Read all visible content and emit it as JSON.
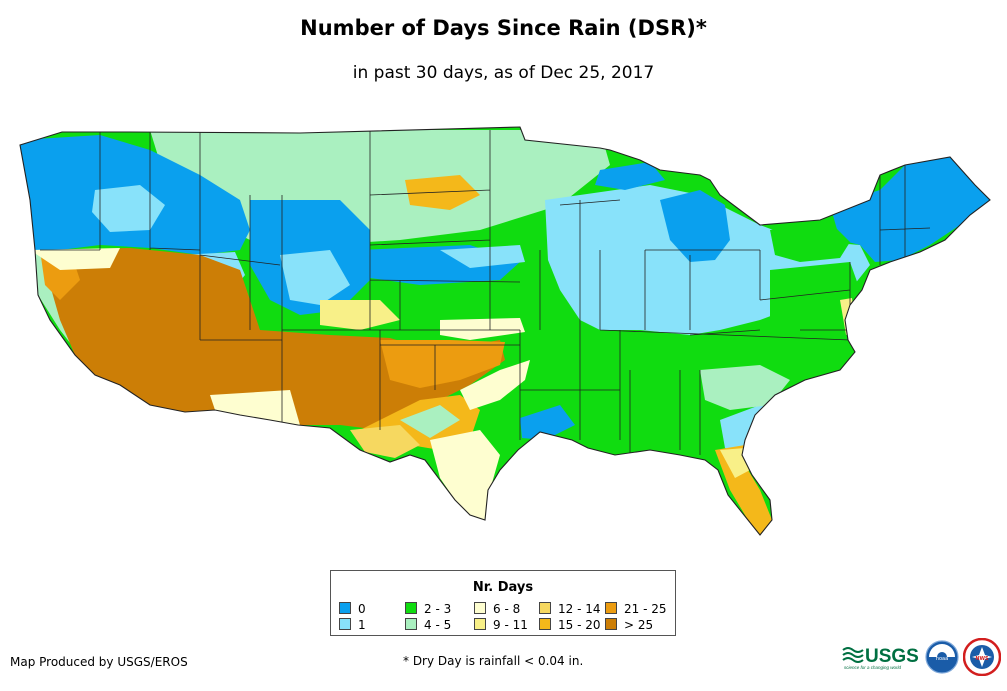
{
  "title": "Number of Days Since Rain (DSR)*",
  "subtitle": "in past 30 days, as of Dec 25, 2017",
  "legend": {
    "title": "Nr. Days",
    "items": [
      {
        "label": "0",
        "color": "#0aa0ee"
      },
      {
        "label": "1",
        "color": "#88e2fa"
      },
      {
        "label": "2 - 3",
        "color": "#10dc10"
      },
      {
        "label": "4 - 5",
        "color": "#aaf0c0"
      },
      {
        "label": "6 - 8",
        "color": "#fefed0"
      },
      {
        "label": "9 - 11",
        "color": "#f8f088"
      },
      {
        "label": "12 - 14",
        "color": "#f6d860"
      },
      {
        "label": "15 - 20",
        "color": "#f4b81a"
      },
      {
        "label": "21 - 25",
        "color": "#ec9c10"
      },
      {
        "label": "> 25",
        "color": "#cc7e06"
      }
    ]
  },
  "footer": {
    "credit": "Map Produced by USGS/EROS",
    "note": "* Dry Day is rainfall < 0.04 in."
  },
  "logos": {
    "usgs_text": "USGS",
    "usgs_tagline": "science for a changing world",
    "noaa_text": "noaa",
    "nws_text": "NWS"
  }
}
